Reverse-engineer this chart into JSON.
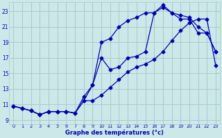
{
  "xlabel": "Graphe des températures (°c)",
  "background_color": "#cce8e8",
  "grid_color": "#aacaca",
  "line_color": "#0000bb",
  "xlim": [
    -0.5,
    23.5
  ],
  "ylim": [
    8.5,
    24.2
  ],
  "yticks": [
    9,
    11,
    13,
    15,
    17,
    19,
    21,
    23
  ],
  "xticks": [
    0,
    1,
    2,
    3,
    4,
    5,
    6,
    7,
    8,
    9,
    10,
    11,
    12,
    13,
    14,
    15,
    16,
    17,
    18,
    19,
    20,
    21,
    22,
    23
  ],
  "line1_x": [
    0,
    1,
    2,
    3,
    4,
    5,
    6,
    7,
    8,
    9,
    10,
    11,
    12,
    13,
    14,
    15,
    16,
    17,
    18,
    19,
    20,
    21,
    22,
    23
  ],
  "line1_y": [
    10.8,
    10.5,
    10.2,
    9.7,
    10.1,
    10.1,
    10.1,
    9.9,
    11.5,
    11.5,
    12.2,
    13.2,
    14.2,
    15.2,
    15.8,
    16.2,
    16.8,
    17.8,
    19.2,
    20.5,
    21.5,
    22.0,
    22.0,
    16.0
  ],
  "line2_x": [
    0,
    1,
    2,
    3,
    4,
    5,
    6,
    7,
    8,
    9,
    10,
    11,
    12,
    13,
    14,
    15,
    16,
    17,
    18,
    19,
    20,
    21,
    22,
    23
  ],
  "line2_y": [
    10.8,
    10.5,
    10.2,
    9.7,
    10.1,
    10.1,
    10.1,
    9.9,
    11.5,
    13.5,
    19.0,
    19.5,
    21.0,
    21.8,
    22.2,
    22.8,
    22.8,
    23.5,
    22.8,
    22.5,
    22.2,
    21.0,
    20.2,
    17.8
  ],
  "line3_x": [
    0,
    1,
    2,
    3,
    4,
    5,
    6,
    7,
    8,
    9,
    10,
    11,
    12,
    13,
    14,
    15,
    16,
    17,
    18,
    19,
    20,
    21,
    22,
    23
  ],
  "line3_y": [
    10.8,
    10.5,
    10.2,
    9.7,
    10.1,
    10.1,
    10.1,
    9.9,
    12.0,
    13.5,
    17.0,
    15.5,
    15.8,
    17.0,
    17.2,
    17.8,
    22.8,
    23.8,
    22.8,
    22.0,
    22.0,
    20.2,
    20.2,
    17.8
  ]
}
